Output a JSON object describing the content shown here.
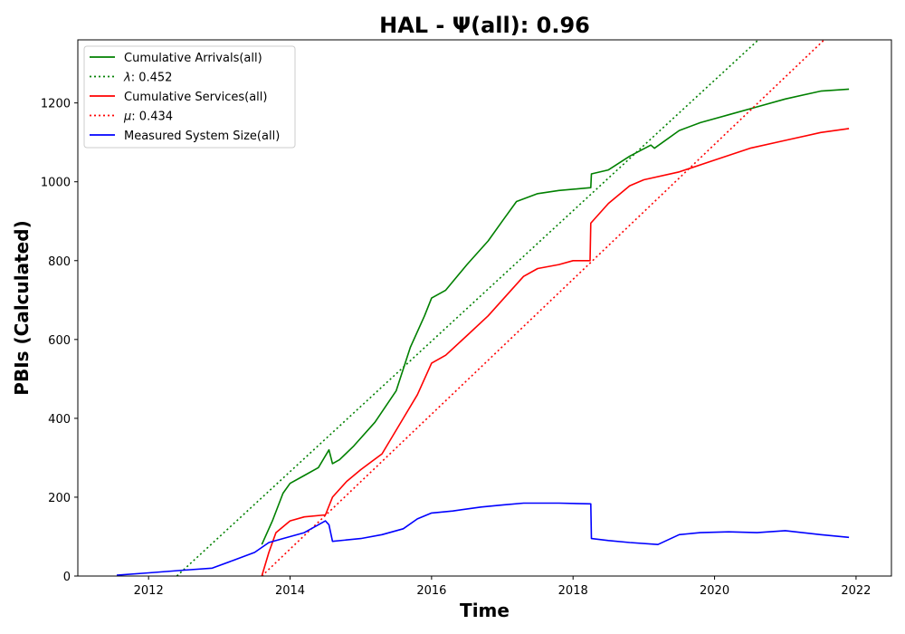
{
  "chart_data": {
    "type": "line",
    "title": "HAL -  Ψ(all): 0.96",
    "xlabel": "Time",
    "ylabel": "PBIs (Calculated)",
    "xlim": [
      2011.0,
      2022.5
    ],
    "ylim": [
      0,
      1360
    ],
    "x_ticks": [
      2012,
      2014,
      2016,
      2018,
      2020,
      2022
    ],
    "y_ticks": [
      0,
      200,
      400,
      600,
      800,
      1000,
      1200
    ],
    "grid": false,
    "legend_position": "top-left",
    "series": [
      {
        "name": "Cumulative Arrivals(all)",
        "style": "solid",
        "color": "#008000",
        "x": [
          2013.6,
          2013.75,
          2013.9,
          2014.0,
          2014.2,
          2014.4,
          2014.55,
          2014.6,
          2014.7,
          2014.9,
          2015.2,
          2015.5,
          2015.7,
          2015.9,
          2016.0,
          2016.2,
          2016.5,
          2016.8,
          2017.0,
          2017.2,
          2017.5,
          2017.8,
          2018.25,
          2018.26,
          2018.5,
          2018.8,
          2019.1,
          2019.15,
          2019.5,
          2019.8,
          2020.2,
          2020.6,
          2021.0,
          2021.5,
          2021.9
        ],
        "y": [
          80,
          140,
          210,
          235,
          255,
          275,
          320,
          285,
          295,
          330,
          390,
          470,
          580,
          660,
          705,
          725,
          790,
          850,
          900,
          950,
          970,
          978,
          985,
          1020,
          1030,
          1065,
          1093,
          1085,
          1130,
          1150,
          1170,
          1190,
          1210,
          1230,
          1235
        ]
      },
      {
        "name": "λ: 0.452",
        "legend_prefix": "λ",
        "legend_value": ": 0.452",
        "style": "dotted",
        "color": "#008000",
        "x": [
          2012.4,
          2020.62
        ],
        "y": [
          0,
          1360
        ]
      },
      {
        "name": "Cumulative Services(all)",
        "style": "solid",
        "color": "#ff0000",
        "x": [
          2013.6,
          2013.7,
          2013.8,
          2014.0,
          2014.2,
          2014.5,
          2014.6,
          2014.8,
          2015.0,
          2015.3,
          2015.6,
          2015.8,
          2016.0,
          2016.2,
          2016.5,
          2016.8,
          2017.0,
          2017.3,
          2017.5,
          2017.8,
          2018.0,
          2018.24,
          2018.25,
          2018.5,
          2018.8,
          2019.0,
          2019.5,
          2020.0,
          2020.5,
          2021.0,
          2021.5,
          2021.9
        ],
        "y": [
          0,
          60,
          110,
          140,
          150,
          155,
          200,
          240,
          270,
          310,
          400,
          460,
          540,
          560,
          610,
          660,
          700,
          760,
          780,
          790,
          800,
          800,
          895,
          945,
          990,
          1005,
          1025,
          1055,
          1085,
          1105,
          1125,
          1135
        ]
      },
      {
        "name": "μ: 0.434",
        "legend_prefix": "μ",
        "legend_value": ": 0.434",
        "style": "dotted",
        "color": "#ff0000",
        "x": [
          2013.6,
          2021.55
        ],
        "y": [
          0,
          1360
        ]
      },
      {
        "name": "Measured System Size(all)",
        "style": "solid",
        "color": "#0000ff",
        "x": [
          2011.55,
          2012.0,
          2012.5,
          2012.9,
          2013.2,
          2013.5,
          2013.7,
          2013.9,
          2014.2,
          2014.5,
          2014.55,
          2014.6,
          2015.0,
          2015.3,
          2015.6,
          2015.8,
          2016.0,
          2016.3,
          2016.7,
          2017.0,
          2017.3,
          2017.8,
          2018.25,
          2018.26,
          2018.5,
          2018.8,
          2019.2,
          2019.5,
          2019.8,
          2020.2,
          2020.6,
          2021.0,
          2021.5,
          2021.9
        ],
        "y": [
          2,
          8,
          15,
          20,
          40,
          60,
          85,
          95,
          110,
          140,
          130,
          88,
          95,
          105,
          120,
          145,
          160,
          165,
          175,
          180,
          185,
          185,
          183,
          95,
          90,
          85,
          80,
          105,
          110,
          112,
          110,
          115,
          105,
          98
        ]
      }
    ]
  }
}
